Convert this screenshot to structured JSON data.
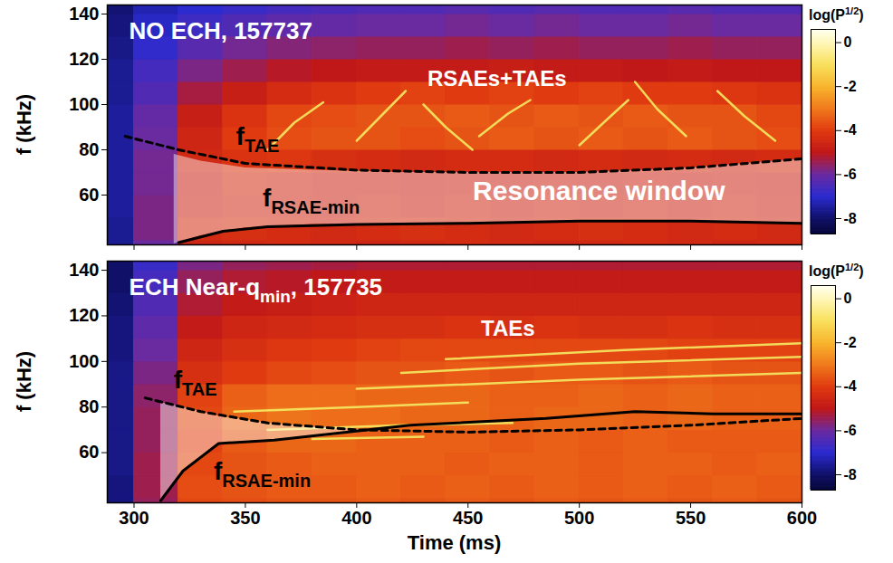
{
  "chart_data": [
    {
      "type": "spectrogram",
      "title": {
        "text": "NO ECH, 157737",
        "t": 298,
        "f": 129,
        "color": "#ffffff"
      },
      "ylabel": "f (kHz)",
      "xlim": [
        288,
        600
      ],
      "ylim": [
        38,
        144
      ],
      "xticks": [
        300,
        350,
        400,
        450,
        500,
        550,
        600
      ],
      "yticks": [
        60,
        80,
        100,
        120,
        140
      ],
      "tick_labels": "y",
      "heatmap": {
        "t_edges": [
          280,
          300,
          320,
          340,
          360,
          380,
          400,
          420,
          440,
          460,
          480,
          500,
          520,
          540,
          560,
          580,
          600
        ],
        "f_edges": [
          30,
          40,
          50,
          60,
          70,
          80,
          90,
          100,
          110,
          120,
          130,
          140,
          150
        ],
        "values": [
          [
            -7.6,
            -6.0,
            -4.6,
            -4.5,
            -4.4,
            -4.5,
            -4.6,
            -4.5,
            -4.4,
            -4.5,
            -4.6,
            -4.5,
            -4.4,
            -4.5,
            -4.6,
            -4.5
          ],
          [
            -7.6,
            -5.8,
            -4.4,
            -4.3,
            -4.4,
            -4.5,
            -4.4,
            -4.3,
            -4.4,
            -4.5,
            -4.4,
            -4.3,
            -4.4,
            -4.5,
            -4.4,
            -4.5
          ],
          [
            -7.5,
            -5.8,
            -4.6,
            -4.5,
            -4.5,
            -4.6,
            -4.5,
            -4.6,
            -4.5,
            -4.6,
            -4.5,
            -4.6,
            -4.5,
            -4.6,
            -4.5,
            -4.6
          ],
          [
            -7.5,
            -5.9,
            -4.7,
            -4.4,
            -4.5,
            -4.6,
            -4.6,
            -4.7,
            -4.6,
            -4.7,
            -4.6,
            -4.7,
            -4.6,
            -4.7,
            -4.6,
            -4.7
          ],
          [
            -7.5,
            -5.9,
            -4.5,
            -4.2,
            -4.1,
            -4.3,
            -4.4,
            -4.5,
            -4.4,
            -4.4,
            -4.5,
            -4.4,
            -4.5,
            -4.4,
            -4.5,
            -4.4
          ],
          [
            -7.5,
            -6.0,
            -4.6,
            -4.0,
            -3.7,
            -3.6,
            -3.6,
            -3.7,
            -3.6,
            -3.5,
            -3.6,
            -3.5,
            -3.6,
            -3.5,
            -3.6,
            -3.7
          ],
          [
            -7.5,
            -6.1,
            -4.8,
            -4.2,
            -3.8,
            -3.7,
            -3.6,
            -3.6,
            -3.5,
            -3.6,
            -3.5,
            -3.6,
            -3.5,
            -3.6,
            -3.6,
            -3.8
          ],
          [
            -7.6,
            -6.4,
            -5.3,
            -4.8,
            -4.4,
            -4.2,
            -4.0,
            -3.9,
            -4.0,
            -3.9,
            -4.0,
            -3.9,
            -4.0,
            -4.0,
            -4.1,
            -4.2
          ],
          [
            -7.6,
            -6.6,
            -5.8,
            -5.4,
            -5.1,
            -5.0,
            -4.9,
            -4.9,
            -4.9,
            -4.8,
            -4.9,
            -4.9,
            -5.0,
            -4.9,
            -5.0,
            -5.0
          ],
          [
            -7.7,
            -6.9,
            -6.3,
            -5.9,
            -5.7,
            -5.6,
            -5.5,
            -5.5,
            -5.4,
            -5.5,
            -5.4,
            -5.5,
            -5.5,
            -5.4,
            -5.5,
            -5.5
          ],
          [
            -7.8,
            -7.1,
            -6.7,
            -6.4,
            -6.2,
            -6.1,
            -6.0,
            -6.0,
            -5.9,
            -6.0,
            -5.9,
            -6.0,
            -6.0,
            -5.9,
            -6.0,
            -6.0
          ],
          [
            -7.9,
            -7.3,
            -7.0,
            -6.8,
            -6.6,
            -6.5,
            -6.4,
            -6.4,
            -6.3,
            -6.4,
            -6.3,
            -6.4,
            -6.4,
            -6.3,
            -6.4,
            -6.4
          ]
        ]
      },
      "colorbar": {
        "label": "log(P",
        "label_superscript": "1/2",
        "label_end": ")",
        "range": [
          -8.7,
          0.6
        ],
        "ticks": [
          -8,
          -6,
          -4,
          -2,
          0
        ]
      },
      "modes": {
        "color": "#f4ea62",
        "lines": [
          [
            [
              360,
              80
            ],
            [
              372,
              92
            ],
            [
              385,
              101
            ]
          ],
          [
            [
              400,
              84
            ],
            [
              412,
              96
            ],
            [
              422,
              106
            ]
          ],
          [
            [
              430,
              100
            ],
            [
              440,
              90
            ],
            [
              452,
              80
            ]
          ],
          [
            [
              455,
              86
            ],
            [
              468,
              96
            ],
            [
              478,
              102
            ]
          ],
          [
            [
              500,
              82
            ],
            [
              512,
              93
            ],
            [
              522,
              102
            ]
          ],
          [
            [
              525,
              110
            ],
            [
              535,
              98
            ],
            [
              548,
              86
            ]
          ],
          [
            [
              562,
              106
            ],
            [
              574,
              95
            ],
            [
              588,
              84
            ]
          ]
        ]
      },
      "resonance_window": {
        "text": "Resonance window",
        "text_t": 509,
        "text_f": 57.5,
        "color": "#ffffff",
        "t": [
          318,
          330,
          350,
          380,
          420,
          460,
          500,
          530,
          550,
          575,
          600
        ],
        "upper": [
          78,
          75,
          72,
          71,
          70,
          70,
          70,
          71,
          72,
          74,
          76
        ],
        "lower": [
          38.4,
          42,
          45.5,
          47,
          47,
          47.5,
          48.5,
          48.5,
          48.5,
          48,
          47.5
        ]
      },
      "series": [
        {
          "name": "f",
          "subscript": "TAE",
          "label_t": 346,
          "label_f": 82,
          "color": "#000000",
          "line_style": "dashed",
          "t": [
            296,
            320,
            350,
            400,
            450,
            500,
            550,
            600
          ],
          "values": [
            86,
            80,
            74,
            71,
            70,
            70,
            72,
            76
          ]
        },
        {
          "name": "f",
          "subscript": "RSAE-min",
          "label_t": 358,
          "label_f": 55,
          "color": "#000000",
          "line_style": "solid",
          "t": [
            320,
            340,
            360,
            400,
            450,
            500,
            550,
            600
          ],
          "values": [
            39,
            44,
            46,
            47,
            47.5,
            48.5,
            48.5,
            47.5
          ]
        }
      ],
      "annotations": [
        {
          "text": "RSAEs+TAEs",
          "t": 432,
          "f": 108,
          "color": "#ffffff"
        }
      ]
    },
    {
      "type": "spectrogram",
      "title": {
        "text": "ECH Near-q",
        "subscript": "min",
        "after": ", 157735",
        "t": 298,
        "f": 129,
        "color": "#ffffff"
      },
      "xlabel": "Time (ms)",
      "ylabel": "f (kHz)",
      "xlim": [
        288,
        600
      ],
      "ylim": [
        38,
        144
      ],
      "xticks": [
        300,
        350,
        400,
        450,
        500,
        550,
        600
      ],
      "yticks": [
        60,
        80,
        100,
        120,
        140
      ],
      "heatmap": {
        "t_edges": [
          280,
          300,
          320,
          340,
          360,
          380,
          400,
          420,
          440,
          460,
          480,
          500,
          520,
          540,
          560,
          580,
          600
        ],
        "f_edges": [
          30,
          40,
          50,
          60,
          70,
          80,
          90,
          100,
          110,
          120,
          130,
          140,
          150
        ],
        "values": [
          [
            -7.8,
            -5.5,
            -3.8,
            -3.7,
            -3.6,
            -3.6,
            -3.5,
            -3.6,
            -3.5,
            -3.6,
            -3.5,
            -3.6,
            -3.5,
            -3.6,
            -3.5,
            -3.6
          ],
          [
            -7.8,
            -5.4,
            -3.7,
            -3.6,
            -3.5,
            -3.5,
            -3.4,
            -3.5,
            -3.4,
            -3.5,
            -3.4,
            -3.5,
            -3.4,
            -3.5,
            -3.4,
            -3.5
          ],
          [
            -7.7,
            -5.4,
            -3.8,
            -3.6,
            -3.5,
            -3.4,
            -3.4,
            -3.4,
            -3.5,
            -3.4,
            -3.4,
            -3.5,
            -3.4,
            -3.4,
            -3.5,
            -3.4
          ],
          [
            -7.7,
            -5.5,
            -3.9,
            -3.5,
            -3.3,
            -3.3,
            -3.4,
            -3.4,
            -3.4,
            -3.5,
            -3.4,
            -3.5,
            -3.4,
            -3.5,
            -3.5,
            -3.5
          ],
          [
            -7.7,
            -5.5,
            -3.8,
            -3.3,
            -3.1,
            -3.2,
            -3.2,
            -3.3,
            -3.3,
            -3.4,
            -3.3,
            -3.3,
            -3.4,
            -3.3,
            -3.4,
            -3.4
          ],
          [
            -7.7,
            -5.6,
            -3.9,
            -3.4,
            -3.2,
            -3.2,
            -3.3,
            -3.3,
            -3.3,
            -3.4,
            -3.4,
            -3.3,
            -3.4,
            -3.3,
            -3.4,
            -3.4
          ],
          [
            -7.7,
            -5.8,
            -4.3,
            -4.0,
            -3.8,
            -3.7,
            -3.6,
            -3.6,
            -3.5,
            -3.6,
            -3.5,
            -3.5,
            -3.6,
            -3.5,
            -3.6,
            -3.6
          ],
          [
            -7.8,
            -6.0,
            -4.6,
            -4.3,
            -4.1,
            -4.0,
            -3.9,
            -3.8,
            -3.8,
            -3.8,
            -3.8,
            -3.8,
            -3.8,
            -3.9,
            -3.9,
            -3.9
          ],
          [
            -7.8,
            -6.2,
            -4.9,
            -4.6,
            -4.5,
            -4.4,
            -4.3,
            -4.3,
            -4.2,
            -4.3,
            -4.2,
            -4.3,
            -4.3,
            -4.2,
            -4.3,
            -4.3
          ],
          [
            -7.9,
            -6.4,
            -5.2,
            -4.9,
            -4.8,
            -4.7,
            -4.6,
            -4.6,
            -4.6,
            -4.6,
            -4.6,
            -4.6,
            -4.6,
            -4.6,
            -4.6,
            -4.6
          ],
          [
            -8.0,
            -6.6,
            -5.5,
            -5.2,
            -5.1,
            -5.0,
            -4.9,
            -4.9,
            -4.9,
            -4.9,
            -4.9,
            -4.9,
            -4.9,
            -4.9,
            -4.9,
            -4.9
          ],
          [
            -8.0,
            -6.8,
            -5.8,
            -5.5,
            -5.4,
            -5.3,
            -5.2,
            -5.2,
            -5.2,
            -5.2,
            -5.2,
            -5.2,
            -5.2,
            -5.2,
            -5.2,
            -5.2
          ]
        ]
      },
      "colorbar": {
        "label": "log(P",
        "label_superscript": "1/2",
        "label_end": ")",
        "range": [
          -8.7,
          0.6
        ],
        "ticks": [
          -8,
          -6,
          -4,
          -2,
          0
        ]
      },
      "modes": {
        "color": "#f4ea62",
        "lines": [
          [
            [
              345,
              78
            ],
            [
              400,
              80
            ],
            [
              450,
              82
            ]
          ],
          [
            [
              400,
              88
            ],
            [
              500,
              92
            ],
            [
              600,
              95
            ]
          ],
          [
            [
              420,
              95
            ],
            [
              500,
              99
            ],
            [
              600,
              102
            ]
          ],
          [
            [
              440,
              101
            ],
            [
              520,
              105
            ],
            [
              600,
              108
            ]
          ],
          [
            [
              360,
              70
            ],
            [
              420,
              72
            ],
            [
              470,
              73
            ]
          ],
          [
            [
              380,
              66
            ],
            [
              430,
              67
            ]
          ]
        ]
      },
      "resonance_window": {
        "color": "#ffffff",
        "t": [
          312,
          322,
          338,
          360,
          385,
          405
        ],
        "upper": [
          82,
          80,
          76,
          73,
          71,
          70
        ],
        "lower": [
          39,
          52,
          64,
          65.5,
          67,
          69.5
        ]
      },
      "series": [
        {
          "name": "f",
          "subscript": "TAE",
          "label_t": 318,
          "label_f": 88,
          "color": "#000000",
          "line_style": "dashed",
          "t": [
            305,
            330,
            360,
            400,
            450,
            500,
            550,
            600
          ],
          "values": [
            84,
            78,
            73,
            70,
            69,
            70,
            72,
            75
          ]
        },
        {
          "name": "f",
          "subscript": "RSAE-min",
          "label_t": 336,
          "label_f": 48,
          "color": "#000000",
          "line_style": "solid",
          "t": [
            312,
            322,
            338,
            363,
            424,
            485,
            525,
            560,
            600
          ],
          "values": [
            39,
            52,
            64,
            65.5,
            72,
            75,
            78,
            77,
            77
          ]
        }
      ],
      "annotations": [
        {
          "text": "TAEs",
          "t": 456,
          "f": 111,
          "color": "#ffffff"
        }
      ]
    }
  ]
}
